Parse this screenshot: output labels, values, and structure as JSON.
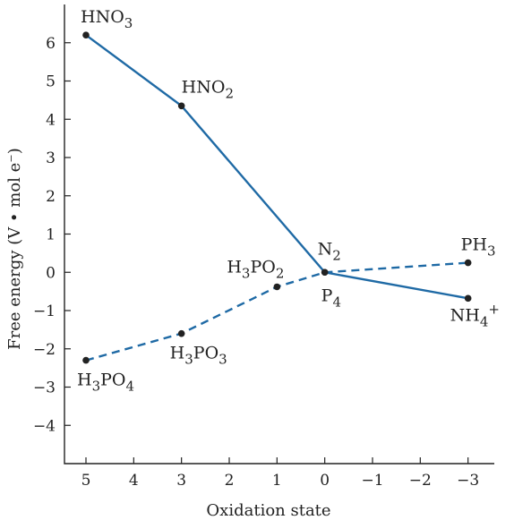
{
  "chart_data": {
    "type": "line",
    "xlabel": "Oxidation state",
    "ylabel": "Free energy (V • mol e⁻)",
    "xlim": [
      5.45,
      -3.55
    ],
    "ylim": [
      -5.0,
      7.0
    ],
    "x_ticks": [
      5,
      4,
      3,
      2,
      1,
      0,
      -1,
      -2,
      -3
    ],
    "x_tick_labels": [
      "5",
      "4",
      "3",
      "2",
      "1",
      "0",
      "−1",
      "−2",
      "−3"
    ],
    "y_ticks": [
      6,
      5,
      4,
      3,
      2,
      1,
      0,
      -1,
      -2,
      -3,
      -4
    ],
    "y_tick_labels": [
      "6",
      "5",
      "4",
      "3",
      "2",
      "1",
      "0",
      "−1",
      "−2",
      "−3",
      "−4"
    ],
    "colors": {
      "line": "#1f6aa5",
      "point": "#222222",
      "axis": "#222222"
    },
    "series": [
      {
        "style": "solid",
        "points": [
          {
            "x": 5,
            "y": 6.2,
            "label": [
              "HNO",
              "3",
              ""
            ]
          },
          {
            "x": 3,
            "y": 4.35,
            "label": [
              "HNO",
              "2",
              ""
            ]
          },
          {
            "x": 0,
            "y": 0,
            "label": [
              "N",
              "2",
              ""
            ]
          },
          {
            "x": -3,
            "y": -0.68,
            "label": [
              "NH",
              "4",
              "+"
            ]
          }
        ]
      },
      {
        "style": "dashed",
        "points": [
          {
            "x": 5,
            "y": -2.3,
            "label": [
              "H",
              "3",
              "PO",
              "4"
            ]
          },
          {
            "x": 3,
            "y": -1.6,
            "label": [
              "H",
              "3",
              "PO",
              "3"
            ]
          },
          {
            "x": 1,
            "y": -0.38,
            "label": [
              "H",
              "3",
              "PO",
              "2"
            ]
          },
          {
            "x": 0,
            "y": 0,
            "label": [
              "P",
              "4"
            ]
          },
          {
            "x": -3,
            "y": 0.25,
            "label": [
              "PH",
              "3"
            ]
          }
        ]
      }
    ]
  }
}
